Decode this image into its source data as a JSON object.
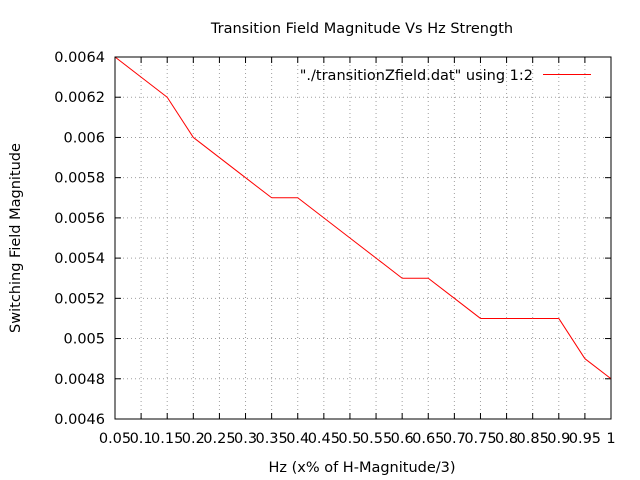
{
  "chart_data": {
    "type": "line",
    "title": "Transition Field Magnitude Vs Hz Strength",
    "xlabel": "Hz (x% of H-Magnitude/3)",
    "ylabel": "Switching Field Magnitude",
    "xlim": [
      0.05,
      1
    ],
    "ylim": [
      0.0046,
      0.0064
    ],
    "x_ticks": [
      "0.05",
      "0.1",
      "0.15",
      "0.2",
      "0.25",
      "0.3",
      "0.35",
      "0.4",
      "0.45",
      "0.5",
      "0.55",
      "0.6",
      "0.65",
      "0.7",
      "0.75",
      "0.8",
      "0.85",
      "0.9",
      "0.95",
      "1"
    ],
    "y_ticks": [
      "0.0046",
      "0.0048",
      "0.005",
      "0.0052",
      "0.0054",
      "0.0056",
      "0.0058",
      "0.006",
      "0.0062",
      "0.0064"
    ],
    "grid": true,
    "legend_position": "top-right",
    "series": [
      {
        "name": "\"./transitionZfield.dat\" using 1:2",
        "color": "#ff0000",
        "x": [
          0.05,
          0.1,
          0.15,
          0.2,
          0.25,
          0.3,
          0.35,
          0.4,
          0.45,
          0.5,
          0.55,
          0.6,
          0.65,
          0.7,
          0.75,
          0.8,
          0.85,
          0.9,
          0.95,
          1
        ],
        "y": [
          0.0064,
          0.0063,
          0.0062,
          0.006,
          0.0059,
          0.0058,
          0.0057,
          0.0057,
          0.0056,
          0.0055,
          0.0054,
          0.0053,
          0.0053,
          0.0052,
          0.0051,
          0.0051,
          0.0051,
          0.0051,
          0.0049,
          0.0048
        ]
      }
    ]
  }
}
